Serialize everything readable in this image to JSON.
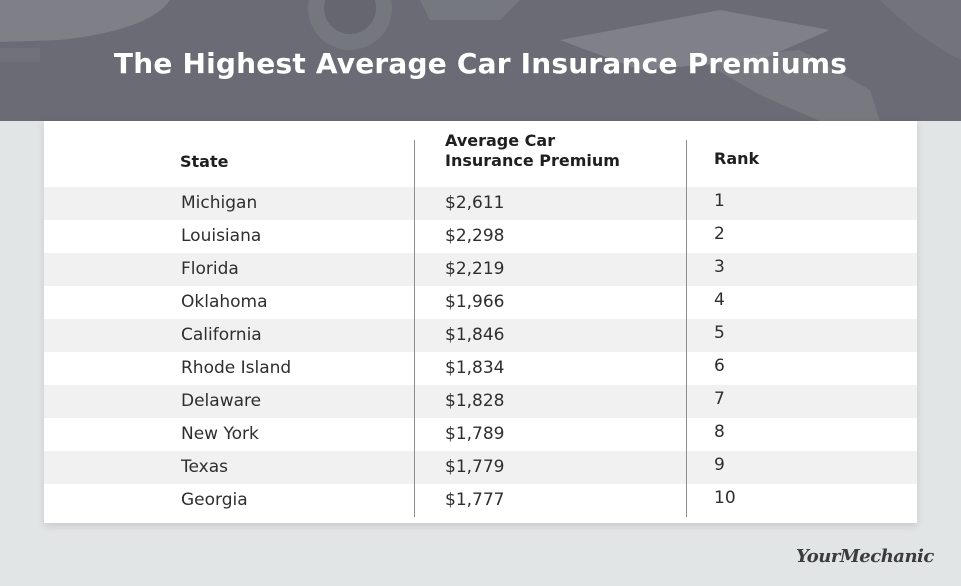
{
  "title": "The Highest Average Car Insurance Premiums",
  "table": {
    "headers": {
      "state": "State",
      "premium_line1": "Average Car",
      "premium_line2": "Insurance Premium",
      "rank": "Rank"
    },
    "rows": [
      {
        "state": "Michigan",
        "premium": "$2,611",
        "rank": "1"
      },
      {
        "state": "Louisiana",
        "premium": "$2,298",
        "rank": "2"
      },
      {
        "state": "Florida",
        "premium": "$2,219",
        "rank": "3"
      },
      {
        "state": "Oklahoma",
        "premium": "$1,966",
        "rank": "4"
      },
      {
        "state": "California",
        "premium": "$1,846",
        "rank": "5"
      },
      {
        "state": "Rhode Island",
        "premium": "$1,834",
        "rank": "6"
      },
      {
        "state": "Delaware",
        "premium": "$1,828",
        "rank": "7"
      },
      {
        "state": "New York",
        "premium": "$1,789",
        "rank": "8"
      },
      {
        "state": "Texas",
        "premium": "$1,779",
        "rank": "9"
      },
      {
        "state": "Georgia",
        "premium": "$1,777",
        "rank": "10"
      }
    ]
  },
  "logo": "YourMechanic",
  "colors": {
    "banner": "#6c6d76",
    "background": "#e2e5e6",
    "row_shade": "#f1f1f1",
    "text": "#2e2e2e"
  }
}
